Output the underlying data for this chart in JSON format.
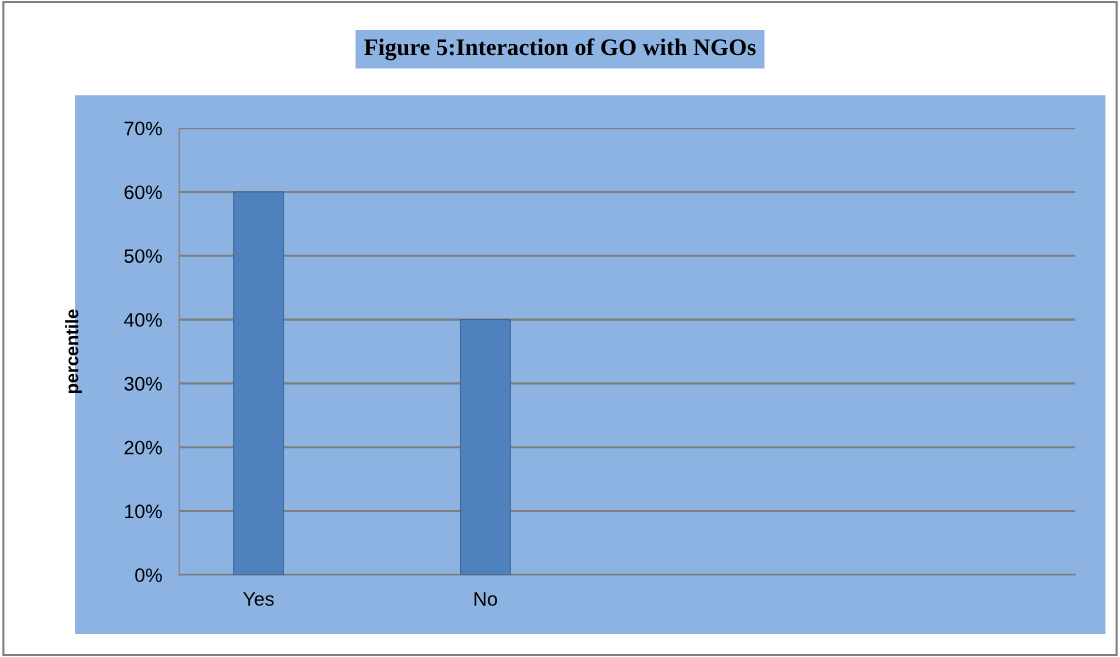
{
  "chart_data": {
    "type": "bar",
    "title": "Figure 5:Interaction of GO with NGOs",
    "ylabel": "percentile",
    "categories": [
      "Yes",
      "No"
    ],
    "values": [
      60,
      40
    ],
    "color": "#4f81bd",
    "ylim": [
      0,
      70
    ],
    "yticks": [
      {
        "value": 0,
        "label": "0%"
      },
      {
        "value": 10,
        "label": "10%"
      },
      {
        "value": 20,
        "label": "20%"
      },
      {
        "value": 30,
        "label": "30%"
      },
      {
        "value": 40,
        "label": "40%"
      },
      {
        "value": 50,
        "label": "50%"
      },
      {
        "value": 60,
        "label": "60%"
      },
      {
        "value": 70,
        "label": "70%"
      }
    ],
    "grid": "y"
  }
}
